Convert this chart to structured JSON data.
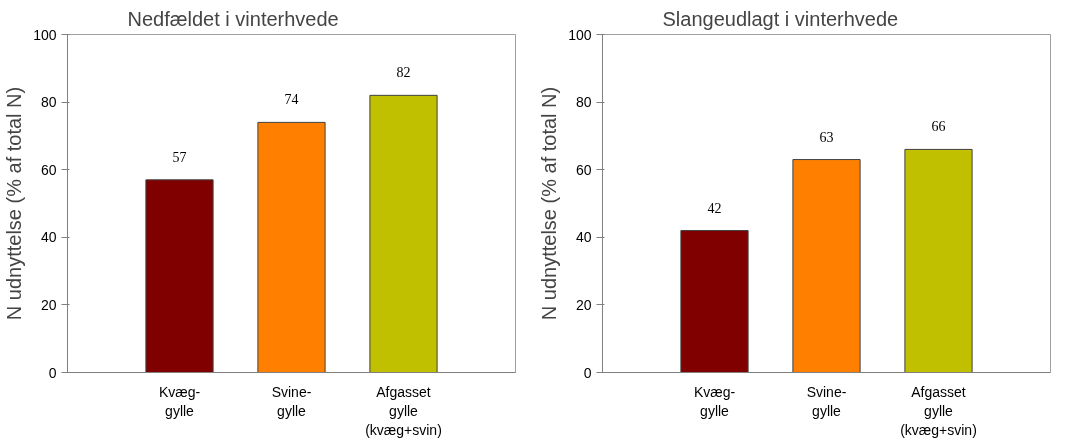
{
  "chart_data": [
    {
      "type": "bar",
      "title": "Nedfældet i vinterhvede",
      "ylabel": "N udnyttelse (% af total N)",
      "categories": [
        "Kvæg-\ngylle",
        "Svine-\ngylle",
        "Afgasset\ngylle\n(kvæg+svin)"
      ],
      "values": [
        57,
        74,
        82
      ],
      "colors": [
        "#800000",
        "#ff8000",
        "#c0c000"
      ],
      "ylim": [
        0,
        100
      ],
      "yticks": [
        0,
        20,
        40,
        60,
        80,
        100
      ],
      "data_labels": true,
      "grid": false
    },
    {
      "type": "bar",
      "title": "Slangeudlagt i vinterhvede",
      "ylabel": "N udnyttelse (% af total N)",
      "categories": [
        "Kvæg-\ngylle",
        "Svine-\ngylle",
        "Afgasset\ngylle\n(kvæg+svin)"
      ],
      "values": [
        42,
        63,
        66
      ],
      "colors": [
        "#800000",
        "#ff8000",
        "#c0c000"
      ],
      "ylim": [
        0,
        100
      ],
      "yticks": [
        0,
        20,
        40,
        60,
        80,
        100
      ],
      "data_labels": true,
      "grid": false
    }
  ]
}
